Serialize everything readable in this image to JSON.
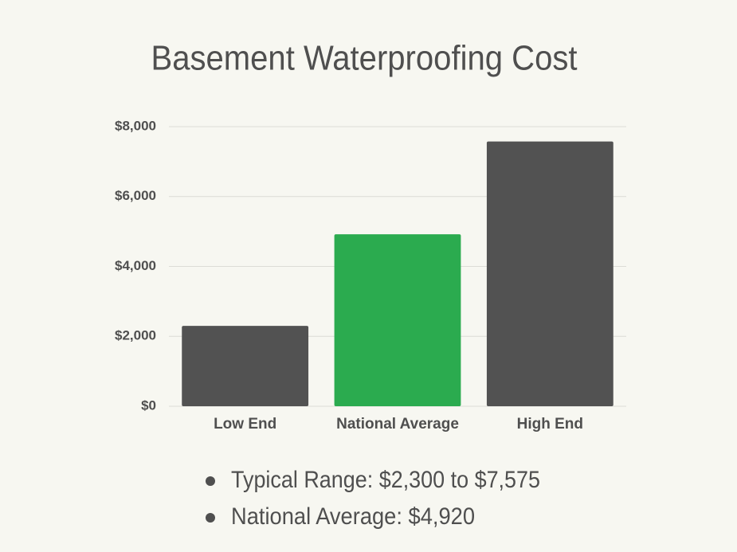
{
  "chart_data": {
    "type": "bar",
    "title": "Basement Waterproofing Cost",
    "categories": [
      "Low End",
      "National Average",
      "High End"
    ],
    "values": [
      2300,
      4920,
      7575
    ],
    "colors": [
      "#525252",
      "#2bab4f",
      "#525252"
    ],
    "ylim": [
      0,
      8000
    ],
    "yticks": [
      {
        "value": 0,
        "label": "$0"
      },
      {
        "value": 2000,
        "label": "$2,000"
      },
      {
        "value": 4000,
        "label": "$4,000"
      },
      {
        "value": 6000,
        "label": "$6,000"
      },
      {
        "value": 8000,
        "label": "$8,000"
      }
    ],
    "grid": true,
    "notes": [
      "Typical Range: $2,300 to $7,575",
      "National Average: $4,920"
    ]
  }
}
